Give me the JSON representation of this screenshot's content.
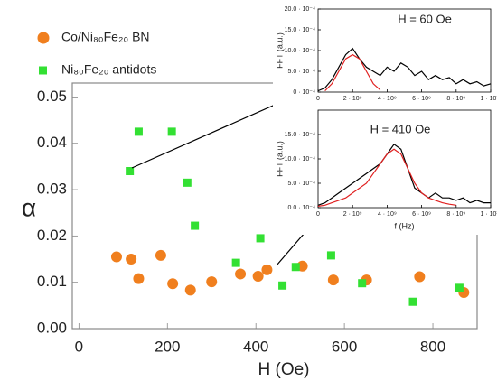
{
  "chart_data": [
    {
      "type": "scatter",
      "xlabel": "H (Oe)",
      "ylabel": "α",
      "xlim": [
        -15,
        900
      ],
      "ylim": [
        0,
        0.053
      ],
      "xticks": [
        0,
        200,
        400,
        600,
        800
      ],
      "yticks": [
        {
          "value": 0,
          "label": "0.00"
        },
        {
          "value": 0.01,
          "label": "0.01"
        },
        {
          "value": 0.02,
          "label": "0.02"
        },
        {
          "value": 0.03,
          "label": "0.03"
        },
        {
          "value": 0.04,
          "label": "0.04"
        },
        {
          "value": 0.05,
          "label": "0.05"
        }
      ],
      "series": [
        {
          "name": "Co/Ni₈₀Fe₂₀ BN",
          "color": "#f07f1e",
          "marker": "circle",
          "x": [
            85,
            118,
            135,
            185,
            212,
            252,
            300,
            365,
            405,
            425,
            505,
            575,
            650,
            770,
            870
          ],
          "values": [
            0.0155,
            0.015,
            0.0108,
            0.0158,
            0.0097,
            0.0083,
            0.0101,
            0.0118,
            0.0113,
            0.0127,
            0.0135,
            0.0105,
            0.0105,
            0.0112,
            0.0078
          ]
        },
        {
          "name": "Ni₈₀Fe₂₀ antidots",
          "color": "#33e033",
          "marker": "square",
          "x": [
            115,
            135,
            210,
            245,
            262,
            355,
            410,
            460,
            490,
            570,
            640,
            755,
            860
          ],
          "values": [
            0.034,
            0.0425,
            0.0425,
            0.0315,
            0.0222,
            0.0142,
            0.0195,
            0.0093,
            0.0133,
            0.0158,
            0.0098,
            0.0058,
            0.0088
          ]
        }
      ]
    },
    {
      "type": "line",
      "title": "H = 60 Oe",
      "xlabel": "f (Hz)",
      "ylabel": "FFT (a.u.)",
      "xlim": [
        0,
        10000000000
      ],
      "ylim": [
        0,
        0.002
      ],
      "xticks": [
        {
          "value": 0,
          "label": "0"
        },
        {
          "value": 2000000000,
          "label": "2 · 10⁹"
        },
        {
          "value": 4000000000,
          "label": "4 · 10⁹"
        },
        {
          "value": 6000000000,
          "label": "6 · 10⁹"
        },
        {
          "value": 8000000000,
          "label": "8 · 10⁹"
        },
        {
          "value": 10000000000,
          "label": "1 · 10¹⁰"
        }
      ],
      "yticks": [
        {
          "value": 0,
          "label": "0 · 10⁻⁴"
        },
        {
          "value": 0.0005,
          "label": "5.0 · 10⁻⁴"
        },
        {
          "value": 0.001,
          "label": "10.0 · 10⁻⁴"
        },
        {
          "value": 0.0015,
          "label": "15.0 · 10⁻⁴"
        },
        {
          "value": 0.002,
          "label": "20.0 · 10⁻⁴"
        }
      ],
      "series": [
        {
          "color": "#000000",
          "x": [
            0,
            400000000,
            800000000,
            1200000000,
            1600000000,
            2000000000,
            2400000000,
            2800000000,
            3200000000,
            3600000000,
            4000000000,
            4400000000,
            4800000000,
            5200000000,
            5600000000,
            6000000000,
            6400000000,
            6800000000,
            7200000000,
            7600000000,
            8000000000,
            8400000000,
            8800000000,
            9200000000,
            9600000000,
            10000000000
          ],
          "values": [
            3e-05,
            0.0001,
            0.0003,
            0.0006,
            0.0009,
            0.00105,
            0.0008,
            0.0006,
            0.0005,
            0.0004,
            0.0006,
            0.0005,
            0.0007,
            0.0006,
            0.0004,
            0.0005,
            0.0003,
            0.0004,
            0.0003,
            0.00035,
            0.0002,
            0.0003,
            0.0002,
            0.00025,
            0.00015,
            0.0002
          ]
        },
        {
          "color": "#e02020",
          "x": [
            400000000,
            800000000,
            1200000000,
            1600000000,
            2000000000,
            2400000000,
            2800000000,
            3200000000,
            3600000000
          ],
          "values": [
            3e-05,
            0.0002,
            0.0005,
            0.0008,
            0.0009,
            0.0008,
            0.0005,
            0.0002,
            5e-05
          ]
        }
      ]
    },
    {
      "type": "line",
      "title": "H = 410 Oe",
      "xlabel": "f (Hz)",
      "ylabel": "FFT (a.u.)",
      "xlim": [
        0,
        10000000000
      ],
      "ylim": [
        0,
        0.002
      ],
      "xticks": [
        {
          "value": 0,
          "label": "0"
        },
        {
          "value": 2000000000,
          "label": "2 · 10⁹"
        },
        {
          "value": 4000000000,
          "label": "4 · 10⁹"
        },
        {
          "value": 6000000000,
          "label": "6 · 10⁹"
        },
        {
          "value": 8000000000,
          "label": "8 · 10⁹"
        },
        {
          "value": 10000000000,
          "label": "1 · 10¹⁰"
        }
      ],
      "yticks": [
        {
          "value": 0,
          "label": "0.0 · 10⁻⁴"
        },
        {
          "value": 0.0005,
          "label": "5.0 · 10⁻⁴"
        },
        {
          "value": 0.001,
          "label": "10.0 · 10⁻⁴"
        },
        {
          "value": 0.0015,
          "label": "15.0 · 10⁻⁴"
        }
      ],
      "series": [
        {
          "color": "#000000",
          "x": [
            0,
            400000000,
            800000000,
            1200000000,
            1600000000,
            2000000000,
            2400000000,
            2800000000,
            3200000000,
            3600000000,
            4000000000,
            4400000000,
            4800000000,
            5200000000,
            5600000000,
            6000000000,
            6400000000,
            6800000000,
            7200000000,
            7600000000,
            8000000000,
            8400000000,
            8800000000,
            9200000000,
            9600000000,
            10000000000
          ],
          "values": [
            5e-05,
            0.0001,
            0.0002,
            0.0003,
            0.0004,
            0.0005,
            0.0006,
            0.0007,
            0.0008,
            0.0009,
            0.0011,
            0.0013,
            0.0012,
            0.0008,
            0.0004,
            0.0003,
            0.0002,
            0.0003,
            0.0002,
            0.0002,
            0.00015,
            0.0002,
            0.0001,
            0.00015,
            0.0001,
            0.0001
          ]
        },
        {
          "color": "#e02020",
          "x": [
            0,
            400000000,
            800000000,
            1200000000,
            1600000000,
            2000000000,
            2400000000,
            2800000000,
            3200000000,
            3600000000,
            4000000000,
            4400000000,
            4800000000,
            5200000000,
            5600000000,
            6000000000,
            6400000000,
            6800000000,
            7200000000,
            7600000000,
            8000000000
          ],
          "values": [
            3e-05,
            5e-05,
            0.0001,
            0.00015,
            0.0002,
            0.0003,
            0.0004,
            0.0005,
            0.0007,
            0.0009,
            0.0011,
            0.0012,
            0.0011,
            0.0008,
            0.0005,
            0.0003,
            0.0002,
            0.00015,
            0.0001,
            7e-05,
            5e-05
          ]
        }
      ]
    }
  ]
}
